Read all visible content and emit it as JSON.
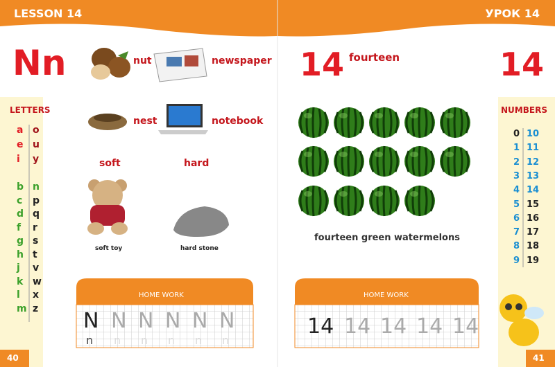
{
  "header": {
    "left": "LESSON 14",
    "right": "УРОК 14"
  },
  "left_page": {
    "letter": "Nn",
    "words": [
      "nut",
      "newspaper",
      "nest",
      "notebook"
    ],
    "adjectives": [
      "soft",
      "hard"
    ],
    "captions": [
      "soft toy",
      "hard stone"
    ],
    "page_number": "40"
  },
  "right_page": {
    "number": "14",
    "word": "fourteen",
    "big_number": "14",
    "caption": "fourteen green watermelons",
    "page_number": "41"
  },
  "letters": {
    "title": "LETTERS",
    "vowels": [
      [
        "a",
        "o"
      ],
      [
        "e",
        "u"
      ],
      [
        "i",
        "y"
      ]
    ],
    "consonants": [
      [
        "b",
        "n"
      ],
      [
        "c",
        "p"
      ],
      [
        "d",
        "q"
      ],
      [
        "f",
        "r"
      ],
      [
        "g",
        "s"
      ],
      [
        "h",
        "t"
      ],
      [
        "j",
        "v"
      ],
      [
        "k",
        "w"
      ],
      [
        "l",
        "x"
      ],
      [
        "m",
        "z"
      ]
    ]
  },
  "numbers": {
    "title": "NUMBERS",
    "rows": [
      [
        "0",
        "10"
      ],
      [
        "1",
        "11"
      ],
      [
        "2",
        "12"
      ],
      [
        "3",
        "13"
      ],
      [
        "4",
        "14"
      ],
      [
        "5",
        "15"
      ],
      [
        "6",
        "16"
      ],
      [
        "7",
        "17"
      ],
      [
        "8",
        "18"
      ],
      [
        "9",
        "19"
      ]
    ]
  },
  "homework_left": {
    "title": "HOME WORK",
    "sample": "N",
    "trace": [
      "N",
      "N",
      "N",
      "N",
      "N"
    ],
    "lower_sample": "n",
    "lower_trace": [
      "n",
      "n",
      "n",
      "n",
      "n"
    ]
  },
  "homework_right": {
    "title": "HOME WORK",
    "sample": "14",
    "trace": [
      "14",
      "14",
      "14",
      "14"
    ]
  }
}
